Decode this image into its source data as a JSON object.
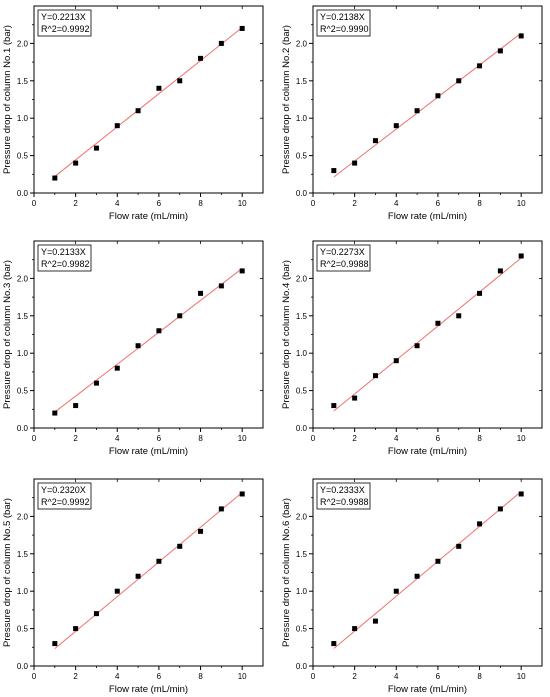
{
  "chart_data": [
    {
      "type": "scatter",
      "xlabel": "Flow rate (mL/min)",
      "ylabel": "Pressure drop of column No.1 (bar)",
      "xlim": [
        0,
        11
      ],
      "ylim": [
        0,
        2.5
      ],
      "xticks": [
        0,
        2,
        4,
        6,
        8,
        10
      ],
      "yticks": [
        0.0,
        0.5,
        1.0,
        1.5,
        2.0
      ],
      "x": [
        1,
        2,
        3,
        4,
        5,
        6,
        7,
        8,
        9,
        10
      ],
      "y": [
        0.2,
        0.4,
        0.6,
        0.9,
        1.1,
        1.4,
        1.5,
        1.8,
        2.0,
        2.2
      ],
      "fit": {
        "slope": 0.2213,
        "x_range": [
          1,
          10
        ]
      },
      "equation": "Y=0.2213X",
      "r2": "R^2=0.9992",
      "legend_position": "top-left",
      "grid": false,
      "marker_color": "#000000",
      "fit_color": "#f07070"
    },
    {
      "type": "scatter",
      "xlabel": "Flow rate (mL/min)",
      "ylabel": "Pressure drop of column No.2 (bar)",
      "xlim": [
        0,
        11
      ],
      "ylim": [
        0,
        2.5
      ],
      "xticks": [
        0,
        2,
        4,
        6,
        8,
        10
      ],
      "yticks": [
        0.0,
        0.5,
        1.0,
        1.5,
        2.0
      ],
      "x": [
        1,
        2,
        3,
        4,
        5,
        6,
        7,
        8,
        9,
        10
      ],
      "y": [
        0.3,
        0.4,
        0.7,
        0.9,
        1.1,
        1.3,
        1.5,
        1.7,
        1.9,
        2.1
      ],
      "fit": {
        "slope": 0.2138,
        "x_range": [
          1,
          10
        ]
      },
      "equation": "Y=0.2138X",
      "r2": "R^2=0.9990",
      "legend_position": "top-left",
      "grid": false,
      "marker_color": "#000000",
      "fit_color": "#f07070"
    },
    {
      "type": "scatter",
      "xlabel": "Flow rate (mL/min)",
      "ylabel": "Pressure drop of column No.3 (bar)",
      "xlim": [
        0,
        11
      ],
      "ylim": [
        0,
        2.5
      ],
      "xticks": [
        0,
        2,
        4,
        6,
        8,
        10
      ],
      "yticks": [
        0.0,
        0.5,
        1.0,
        1.5,
        2.0
      ],
      "x": [
        1,
        2,
        3,
        4,
        5,
        6,
        7,
        8,
        9,
        10
      ],
      "y": [
        0.2,
        0.3,
        0.6,
        0.8,
        1.1,
        1.3,
        1.5,
        1.8,
        1.9,
        2.1
      ],
      "fit": {
        "slope": 0.2133,
        "x_range": [
          1,
          10
        ]
      },
      "equation": "Y=0.2133X",
      "r2": "R^2=0.9982",
      "legend_position": "top-left",
      "grid": false,
      "marker_color": "#000000",
      "fit_color": "#f07070"
    },
    {
      "type": "scatter",
      "xlabel": "Flow rate (mL/min)",
      "ylabel": "Pressure drop of column No.4 (bar)",
      "xlim": [
        0,
        11
      ],
      "ylim": [
        0,
        2.5
      ],
      "xticks": [
        0,
        2,
        4,
        6,
        8,
        10
      ],
      "yticks": [
        0.0,
        0.5,
        1.0,
        1.5,
        2.0
      ],
      "x": [
        1,
        2,
        3,
        4,
        5,
        6,
        7,
        8,
        9,
        10
      ],
      "y": [
        0.3,
        0.4,
        0.7,
        0.9,
        1.1,
        1.4,
        1.5,
        1.8,
        2.1,
        2.3
      ],
      "fit": {
        "slope": 0.2273,
        "x_range": [
          1,
          10
        ]
      },
      "equation": "Y=0.2273X",
      "r2": "R^2=0.9988",
      "legend_position": "top-left",
      "grid": false,
      "marker_color": "#000000",
      "fit_color": "#f07070"
    },
    {
      "type": "scatter",
      "xlabel": "Flow rate (mL/min)",
      "ylabel": "Pressure drop of column No.5 (bar)",
      "xlim": [
        0,
        11
      ],
      "ylim": [
        0,
        2.5
      ],
      "xticks": [
        0,
        2,
        4,
        6,
        8,
        10
      ],
      "yticks": [
        0.0,
        0.5,
        1.0,
        1.5,
        2.0
      ],
      "x": [
        1,
        2,
        3,
        4,
        5,
        6,
        7,
        8,
        9,
        10
      ],
      "y": [
        0.3,
        0.5,
        0.7,
        1.0,
        1.2,
        1.4,
        1.6,
        1.8,
        2.1,
        2.3
      ],
      "fit": {
        "slope": 0.232,
        "x_range": [
          1,
          10
        ]
      },
      "equation": "Y=0.2320X",
      "r2": "R^2=0.9992",
      "legend_position": "top-left",
      "grid": false,
      "marker_color": "#000000",
      "fit_color": "#f07070"
    },
    {
      "type": "scatter",
      "xlabel": "Flow rate (mL/min)",
      "ylabel": "Pressure drop of column No.6 (bar)",
      "xlim": [
        0,
        11
      ],
      "ylim": [
        0,
        2.5
      ],
      "xticks": [
        0,
        2,
        4,
        6,
        8,
        10
      ],
      "yticks": [
        0.0,
        0.5,
        1.0,
        1.5,
        2.0
      ],
      "x": [
        1,
        2,
        3,
        4,
        5,
        6,
        7,
        8,
        9,
        10
      ],
      "y": [
        0.3,
        0.5,
        0.6,
        1.0,
        1.2,
        1.4,
        1.6,
        1.9,
        2.1,
        2.3
      ],
      "fit": {
        "slope": 0.2333,
        "x_range": [
          1,
          10
        ]
      },
      "equation": "Y=0.2333X",
      "r2": "R^2=0.9988",
      "legend_position": "top-left",
      "grid": false,
      "marker_color": "#000000",
      "fit_color": "#f07070"
    }
  ]
}
